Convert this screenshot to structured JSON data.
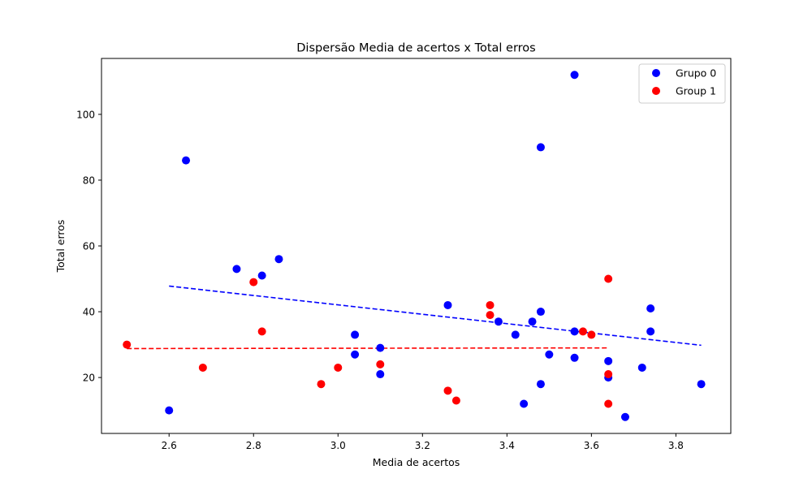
{
  "chart_data": {
    "type": "scatter",
    "title": "Dispersão Media de acertos x Total erros",
    "xlabel": "Media de acertos",
    "ylabel": "Total erros",
    "xlim": [
      2.44,
      3.93
    ],
    "ylim": [
      3,
      117
    ],
    "xticks": [
      "2.6",
      "2.8",
      "3.0",
      "3.2",
      "3.4",
      "3.6",
      "3.8"
    ],
    "yticks": [
      "20",
      "40",
      "60",
      "80",
      "100"
    ],
    "grid": false,
    "legend_position": "top-right",
    "series": [
      {
        "name": "Grupo 0",
        "color": "#0000ff",
        "points": [
          [
            2.6,
            10
          ],
          [
            2.64,
            86
          ],
          [
            2.76,
            53
          ],
          [
            2.82,
            51
          ],
          [
            2.86,
            56
          ],
          [
            3.04,
            33
          ],
          [
            3.04,
            27
          ],
          [
            3.1,
            29
          ],
          [
            3.1,
            21
          ],
          [
            3.26,
            42
          ],
          [
            3.38,
            37
          ],
          [
            3.42,
            33
          ],
          [
            3.44,
            12
          ],
          [
            3.46,
            37
          ],
          [
            3.48,
            40
          ],
          [
            3.48,
            18
          ],
          [
            3.48,
            90
          ],
          [
            3.5,
            27
          ],
          [
            3.56,
            112
          ],
          [
            3.56,
            34
          ],
          [
            3.56,
            26
          ],
          [
            3.64,
            25
          ],
          [
            3.64,
            20
          ],
          [
            3.68,
            8
          ],
          [
            3.72,
            23
          ],
          [
            3.74,
            41
          ],
          [
            3.74,
            34
          ],
          [
            3.86,
            18
          ]
        ],
        "trend": [
          [
            2.6,
            47.8
          ],
          [
            3.86,
            29.8
          ]
        ]
      },
      {
        "name": "Group 1",
        "color": "#ff0000",
        "points": [
          [
            2.5,
            30
          ],
          [
            2.68,
            23
          ],
          [
            2.8,
            49
          ],
          [
            2.82,
            34
          ],
          [
            2.96,
            18
          ],
          [
            3.0,
            23
          ],
          [
            3.1,
            24
          ],
          [
            3.26,
            16
          ],
          [
            3.28,
            13
          ],
          [
            3.36,
            42
          ],
          [
            3.36,
            39
          ],
          [
            3.58,
            34
          ],
          [
            3.6,
            33
          ],
          [
            3.64,
            50
          ],
          [
            3.64,
            21
          ],
          [
            3.64,
            12
          ]
        ],
        "trend": [
          [
            2.5,
            28.8
          ],
          [
            3.64,
            29.0
          ]
        ]
      }
    ]
  }
}
